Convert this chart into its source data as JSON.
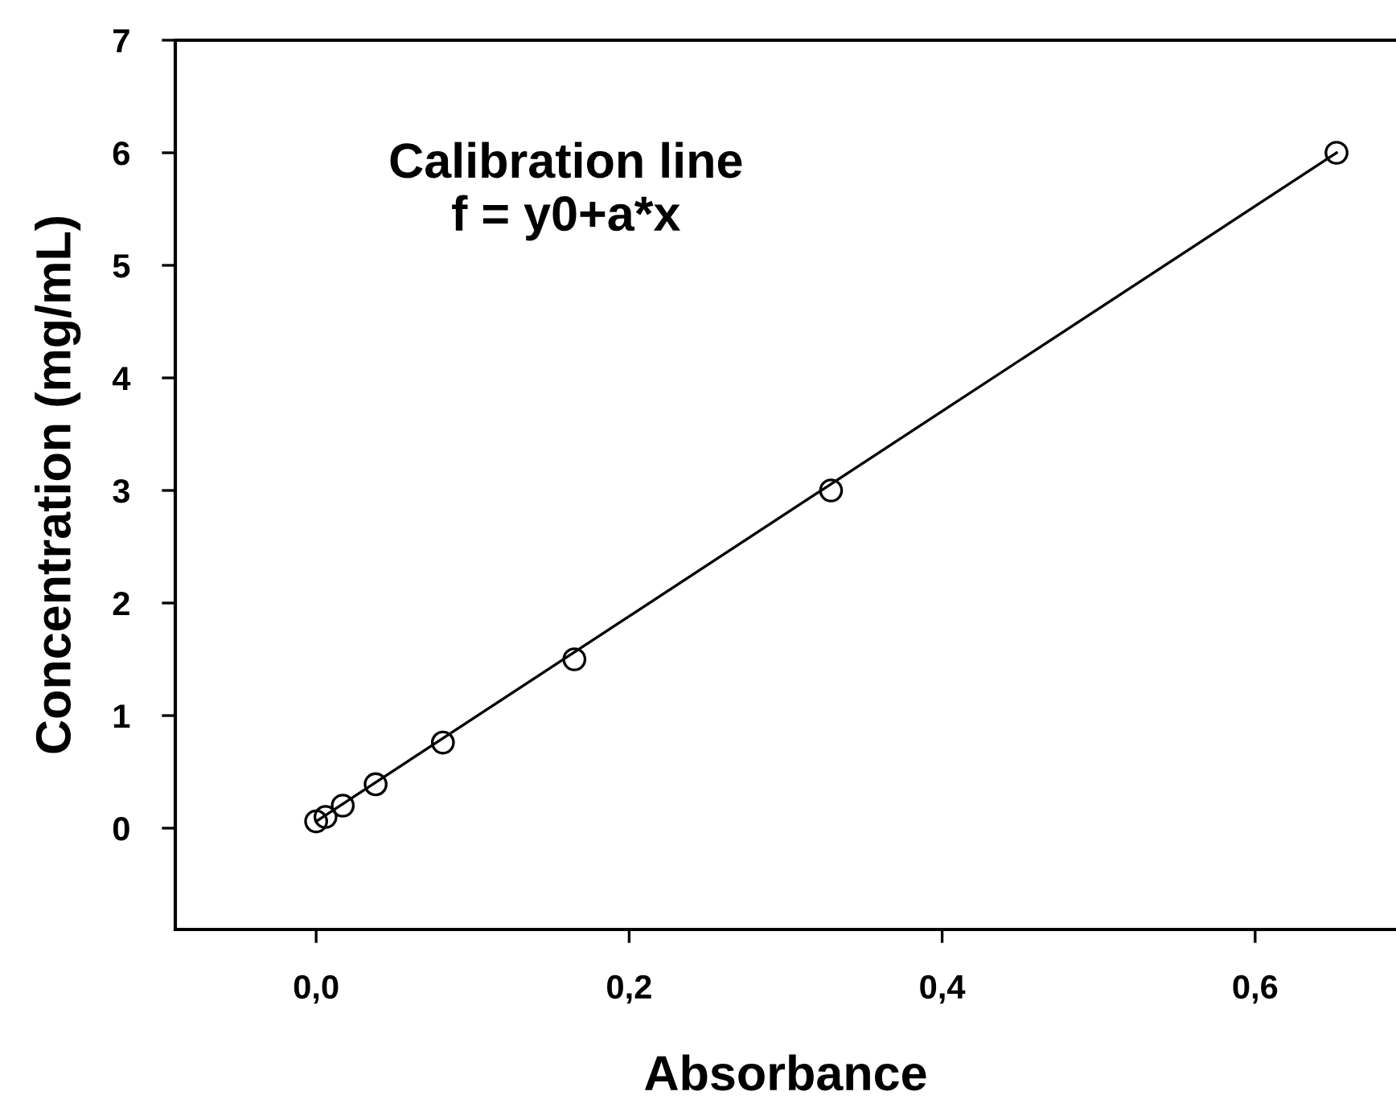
{
  "chart_data": {
    "type": "scatter",
    "xlabel": "Absorbance",
    "ylabel": "Concentration (mg/mL)",
    "annotations": [
      "Calibration line\nf = y0+a*x"
    ],
    "x": [
      0.0,
      0.006,
      0.017,
      0.038,
      0.081,
      0.165,
      0.329,
      0.652
    ],
    "series": [
      {
        "color": "#000000",
        "marker": "circle",
        "values": [
          0.06,
          0.1,
          0.2,
          0.39,
          0.76,
          1.5,
          3.0,
          6.0
        ]
      },
      {
        "type": "line",
        "color": "#000000",
        "marker": "none",
        "line_style": "solid",
        "x": [
          0.0,
          0.652
        ],
        "values": [
          0.06,
          6.0
        ]
      }
    ],
    "xlim": [
      -0.09,
      0.69
    ],
    "ylim": [
      -0.9,
      7
    ],
    "xticks": [
      {
        "value": 0.0,
        "label": "0,0"
      },
      {
        "value": 0.2,
        "label": "0,2"
      },
      {
        "value": 0.4,
        "label": "0,4"
      },
      {
        "value": 0.6,
        "label": "0,6"
      }
    ],
    "yticks": [
      0,
      1,
      2,
      3,
      4,
      5,
      6,
      7
    ],
    "grid": false,
    "legend": false
  }
}
